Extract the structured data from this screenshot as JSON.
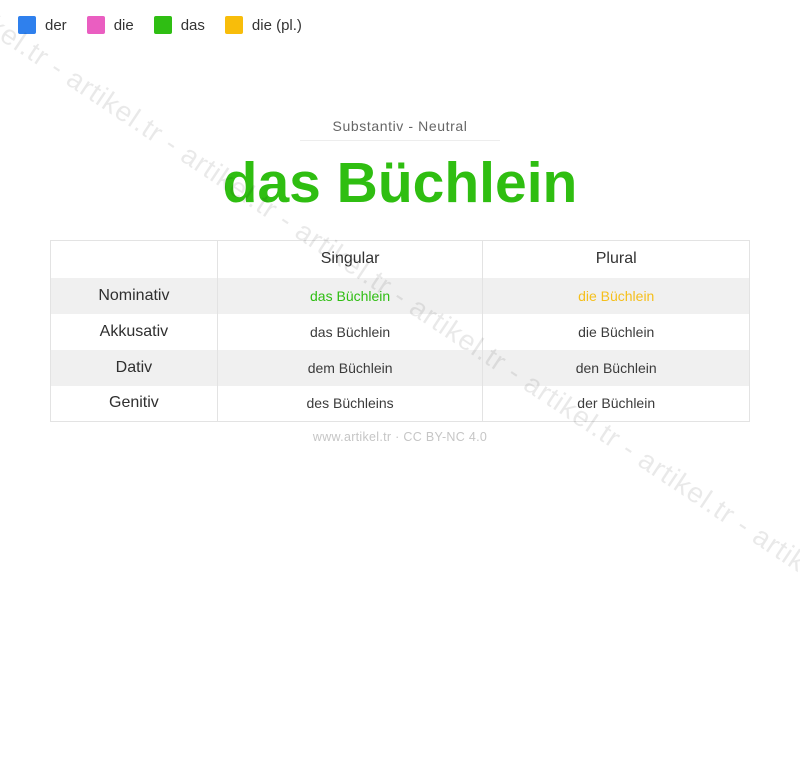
{
  "watermark": {
    "text": "artikel.tr - artikel.tr - artikel.tr - artikel.tr - artikel.tr - artikel.tr - artikel.tr - artikel.tr - artikel.tr - artikel.tr"
  },
  "legend": {
    "items": [
      {
        "label": "der",
        "color": "#2f80ed"
      },
      {
        "label": "die",
        "color": "#ea5ec1"
      },
      {
        "label": "das",
        "color": "#2fbe13"
      },
      {
        "label": "die (pl.)",
        "color": "#f8bd0a"
      }
    ]
  },
  "header": {
    "category": "Substantiv - Neutral",
    "title": "das Büchlein",
    "title_color": "#2fbe11"
  },
  "table": {
    "columns": {
      "case": "",
      "singular": "Singular",
      "plural": "Plural"
    },
    "rows": [
      {
        "case": "Nominativ",
        "singular": "das Büchlein",
        "plural": "die Büchlein",
        "singular_color": "#2fbe13",
        "plural_color": "#f5bf1c"
      },
      {
        "case": "Akkusativ",
        "singular": "das Büchlein",
        "plural": "die Büchlein"
      },
      {
        "case": "Dativ",
        "singular": "dem Büchlein",
        "plural": "den Büchlein"
      },
      {
        "case": "Genitiv",
        "singular": "des Büchleins",
        "plural": "der Büchlein"
      }
    ]
  },
  "footer": {
    "credit": "www.artikel.tr · CC BY-NC 4.0"
  },
  "colors": {
    "stripe_row_bg": "#f0f0f0",
    "table_border": "#e3e3e3"
  }
}
